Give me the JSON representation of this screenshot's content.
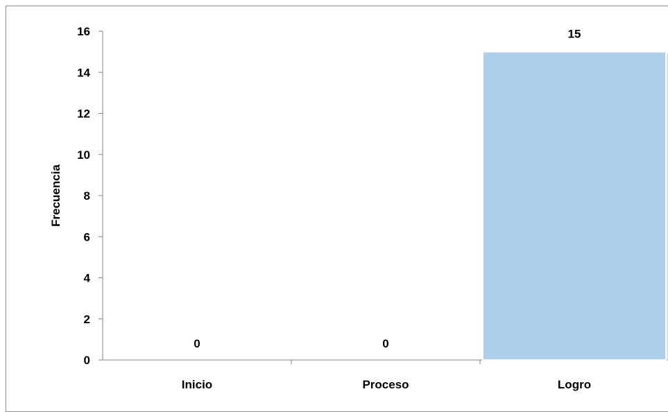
{
  "chart_data": {
    "type": "bar",
    "title": "",
    "xlabel": "",
    "ylabel": "Frecuencia",
    "categories": [
      "Inicio",
      "Proceso",
      "Logro"
    ],
    "values": [
      0,
      0,
      15
    ],
    "data_labels": [
      "0",
      "0",
      "15"
    ],
    "ylim": [
      0,
      16
    ],
    "yticks": [
      0,
      2,
      4,
      6,
      8,
      10,
      12,
      14,
      16
    ],
    "grid": false,
    "legend": "none",
    "bar_color": "#aecfeb",
    "bar_edge_color": "#8fb3d4"
  }
}
